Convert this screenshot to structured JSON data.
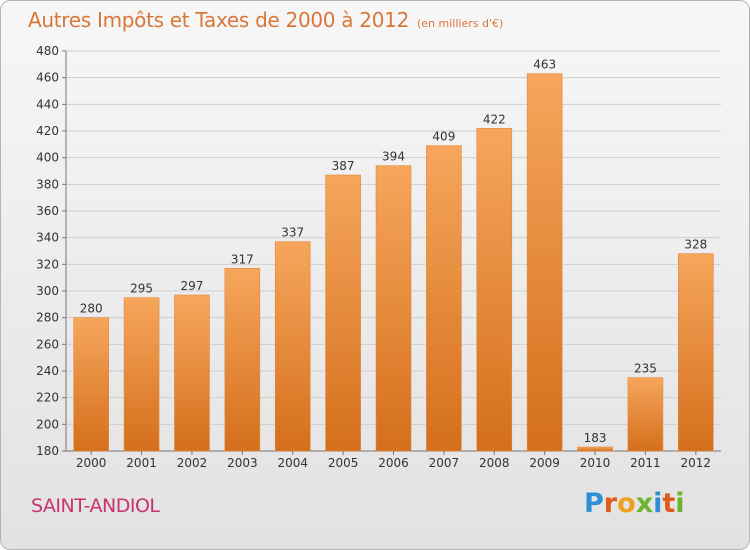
{
  "header": {
    "title": "Autres Impôts et Taxes de 2000 à 2012",
    "unit": "(en milliers d'€)"
  },
  "footer": {
    "city": "SAINT-ANDIOL",
    "logo_text": "Proxiti",
    "logo_letters": [
      {
        "ch": "P",
        "color": "#2f8fd6"
      },
      {
        "ch": "r",
        "color": "#e05a1c"
      },
      {
        "ch": "o",
        "color": "#f0a020"
      },
      {
        "ch": "x",
        "color": "#6bb52e"
      },
      {
        "ch": "i",
        "color": "#2f8fd6"
      },
      {
        "ch": "t",
        "color": "#e05a1c"
      },
      {
        "ch": "i",
        "color": "#6bb52e"
      }
    ]
  },
  "colors": {
    "bar_top": "#f6a65c",
    "bar_bottom": "#d46f1c",
    "bar_edge": "#e5883a",
    "title": "#d9763a",
    "city": "#c8336e",
    "grid": "#cfcfcf"
  },
  "chart_data": {
    "type": "bar",
    "title": "Autres Impôts et Taxes de 2000 à 2012",
    "subtitle": "(en milliers d'€)",
    "xlabel": "",
    "ylabel": "",
    "categories": [
      "2000",
      "2001",
      "2002",
      "2003",
      "2004",
      "2005",
      "2006",
      "2007",
      "2008",
      "2009",
      "2010",
      "2011",
      "2012"
    ],
    "values": [
      280,
      295,
      297,
      317,
      337,
      387,
      394,
      409,
      422,
      463,
      183,
      235,
      328
    ],
    "data_labels": [
      "280",
      "295",
      "297",
      "317",
      "337",
      "387",
      "394",
      "409",
      "422",
      "463",
      "183",
      "235",
      "328"
    ],
    "ylim": [
      180,
      480
    ],
    "yticks": [
      180,
      200,
      220,
      240,
      260,
      280,
      300,
      320,
      340,
      360,
      380,
      400,
      420,
      440,
      460,
      480
    ],
    "grid": true,
    "legend": "none"
  }
}
